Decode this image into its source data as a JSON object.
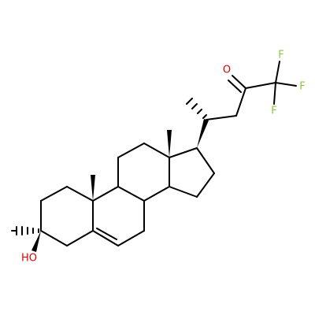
{
  "atoms": [
    "O",
    "F",
    "F",
    "F",
    "HO"
  ]
}
